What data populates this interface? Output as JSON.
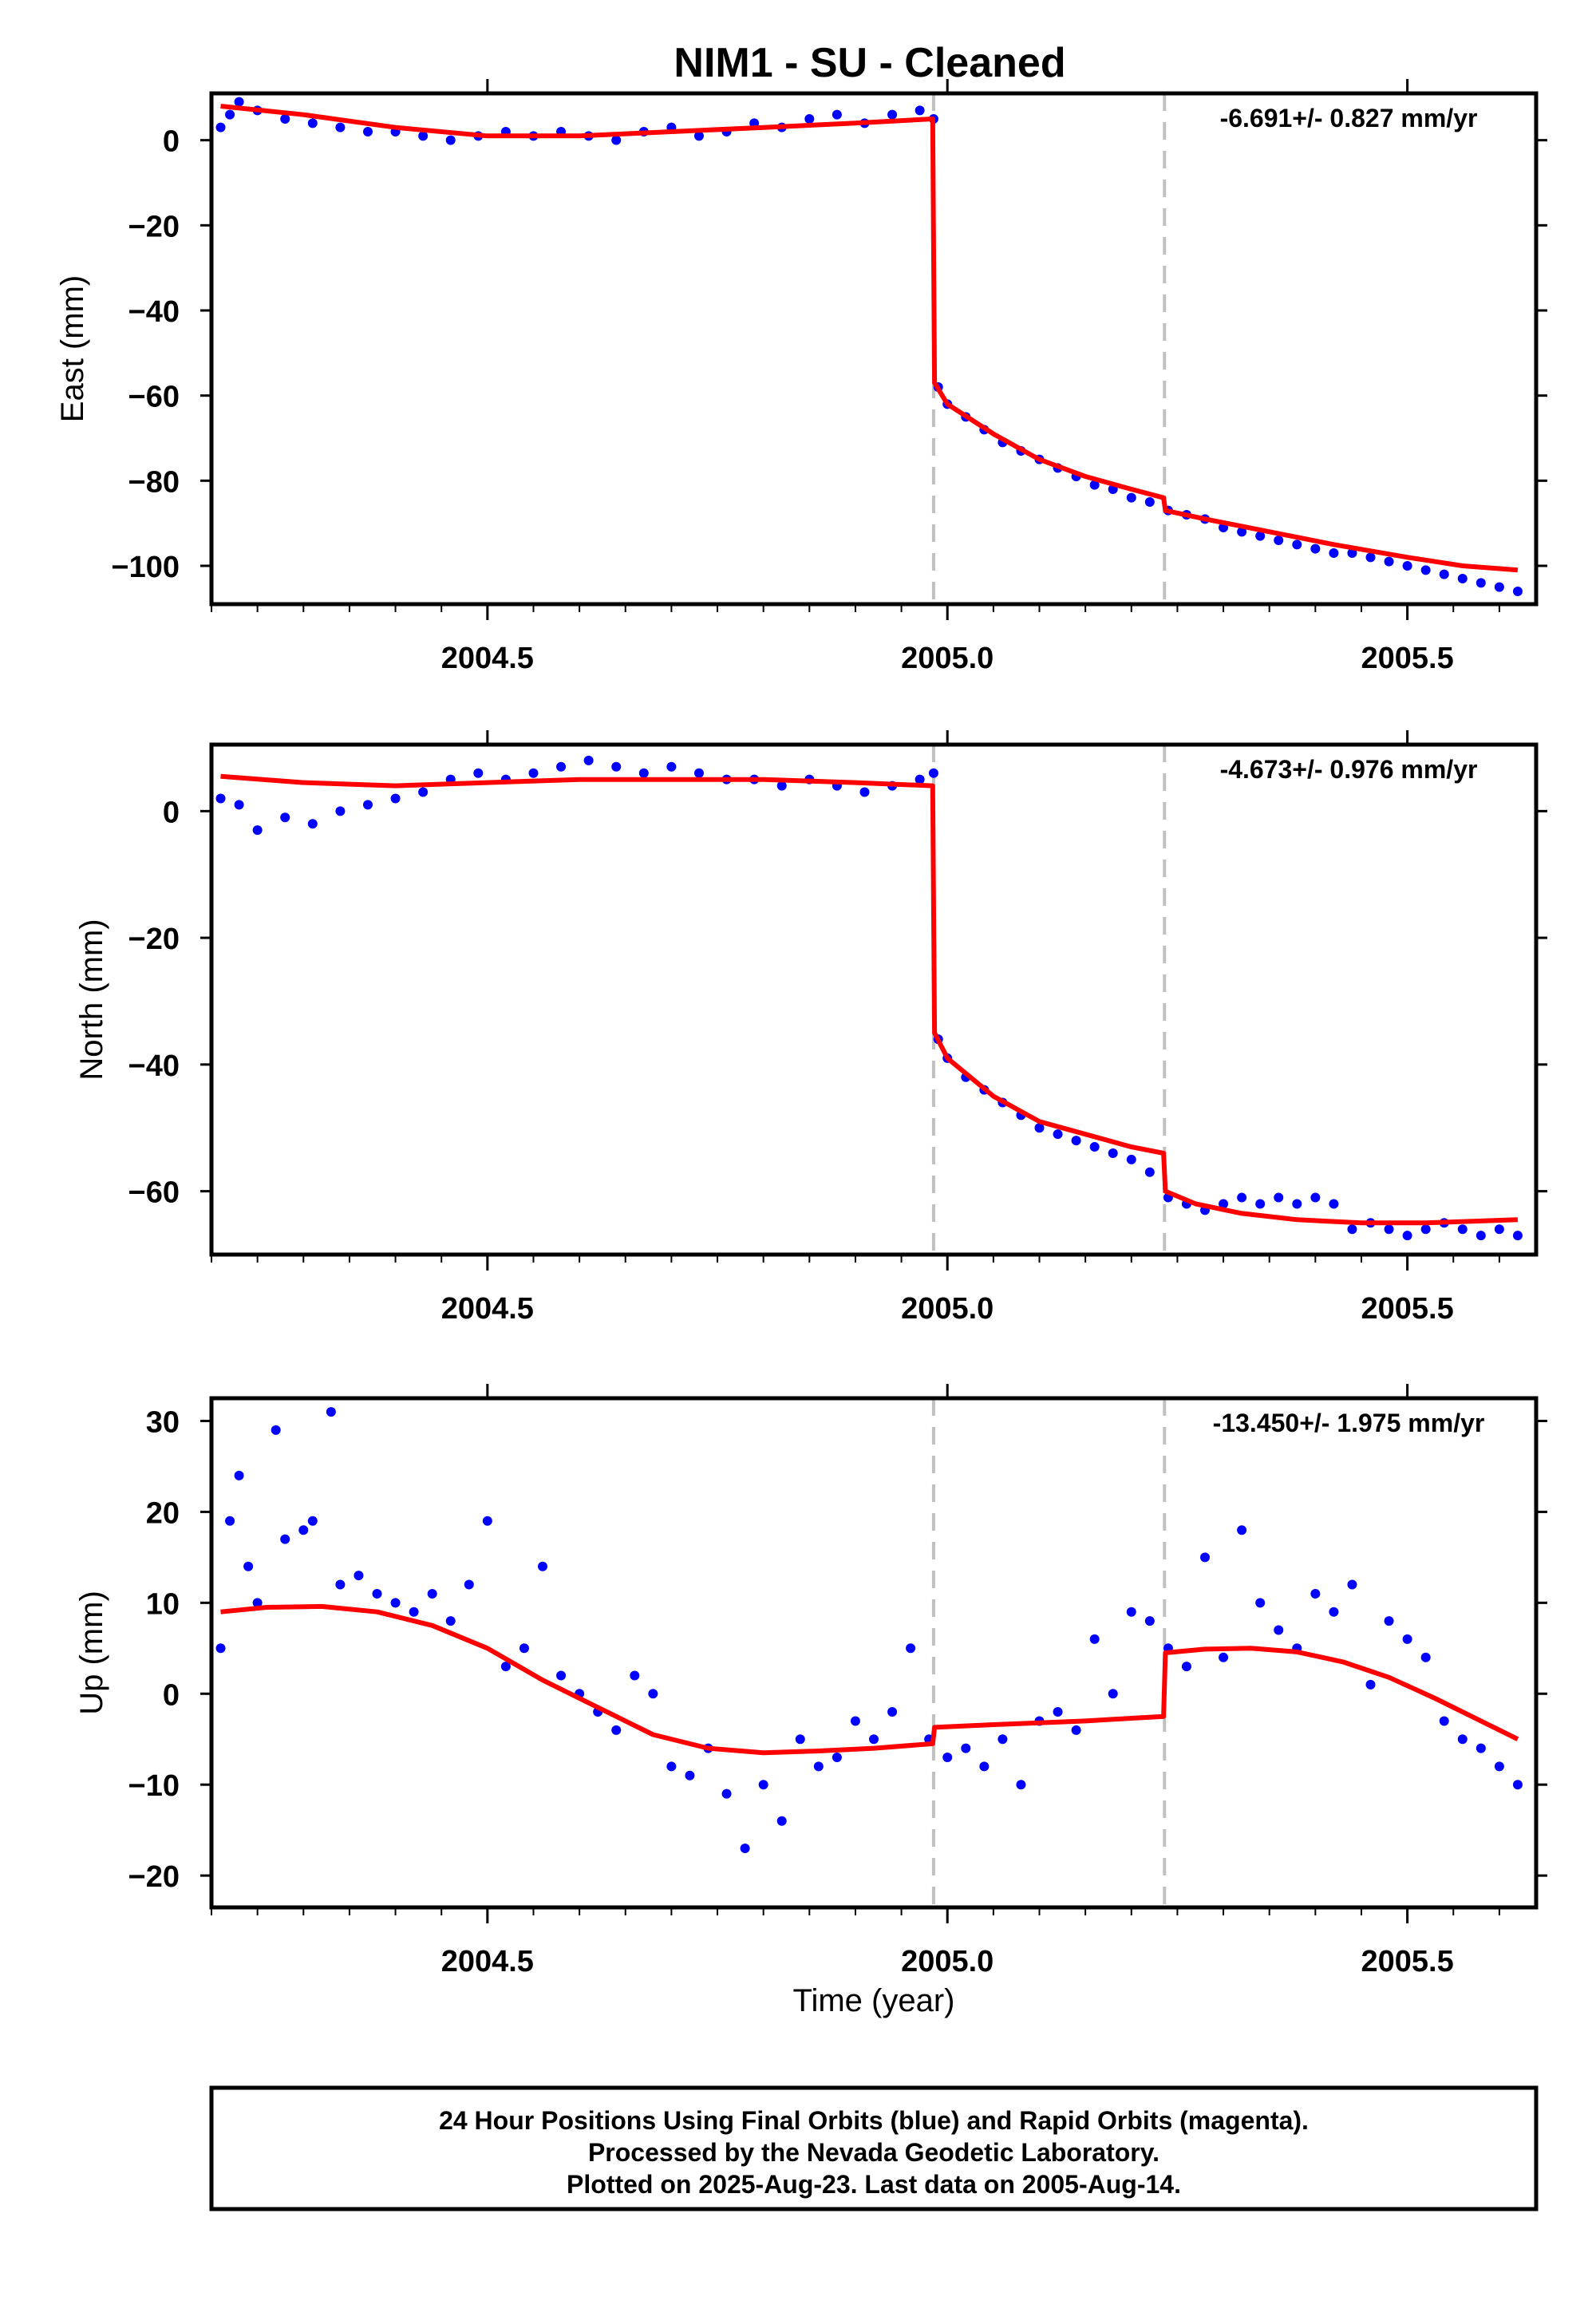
{
  "page": {
    "title": "NIM1  - SU - Cleaned"
  },
  "footer": {
    "lines": [
      "24 Hour Positions Using Final Orbits (blue) and Rapid Orbits (magenta).",
      "Processed by the Nevada Geodetic Laboratory.",
      "Plotted on 2025-Aug-23. Last data on 2005-Aug-14."
    ]
  },
  "colors": {
    "points": "#0000ff",
    "fit": "#ff0000",
    "event_line": "#c0c0c0",
    "frame": "#000000"
  },
  "chart_data": [
    {
      "type": "scatter",
      "ylabel": "East (mm)",
      "xlabel": "",
      "rate_label": "-6.691+/- 0.827 mm/yr",
      "xlim": [
        2004.2,
        2005.64
      ],
      "ylim": [
        -109,
        11
      ],
      "x_ticks": [
        2004.5,
        2005.0,
        2005.5
      ],
      "x_tick_labels": [
        "2004.5",
        "2005.0",
        "2005.5"
      ],
      "y_ticks": [
        0,
        -20,
        -40,
        -60,
        -80,
        -100
      ],
      "y_tick_labels": [
        "0",
        "−20",
        "−40",
        "−60",
        "−80",
        "−100"
      ],
      "event_lines": [
        2004.985,
        2005.236
      ],
      "grid": false,
      "legend": "none",
      "series": [
        {
          "kind": "points",
          "x": [
            2004.21,
            2004.22,
            2004.23,
            2004.25,
            2004.28,
            2004.31,
            2004.34,
            2004.37,
            2004.4,
            2004.43,
            2004.46,
            2004.49,
            2004.52,
            2004.55,
            2004.58,
            2004.61,
            2004.64,
            2004.67,
            2004.7,
            2004.73,
            2004.76,
            2004.79,
            2004.82,
            2004.85,
            2004.88,
            2004.91,
            2004.94,
            2004.97,
            2004.985,
            2004.99,
            2005.0,
            2005.02,
            2005.04,
            2005.06,
            2005.08,
            2005.1,
            2005.12,
            2005.14,
            2005.16,
            2005.18,
            2005.2,
            2005.22,
            2005.24,
            2005.26,
            2005.28,
            2005.3,
            2005.32,
            2005.34,
            2005.36,
            2005.38,
            2005.4,
            2005.42,
            2005.44,
            2005.46,
            2005.48,
            2005.5,
            2005.52,
            2005.54,
            2005.56,
            2005.58,
            2005.6,
            2005.62
          ],
          "y": [
            3,
            6,
            9,
            7,
            5,
            4,
            3,
            2,
            2,
            1,
            0,
            1,
            2,
            1,
            2,
            1,
            0,
            2,
            3,
            1,
            2,
            4,
            3,
            5,
            6,
            4,
            6,
            7,
            5,
            -58,
            -62,
            -65,
            -68,
            -71,
            -73,
            -75,
            -77,
            -79,
            -81,
            -82,
            -84,
            -85,
            -87,
            -88,
            -89,
            -91,
            -92,
            -93,
            -94,
            -95,
            -96,
            -97,
            -97,
            -98,
            -99,
            -100,
            -101,
            -102,
            -103,
            -104,
            -105,
            -106
          ]
        },
        {
          "kind": "fit",
          "x": [
            2004.21,
            2004.3,
            2004.4,
            2004.5,
            2004.6,
            2004.7,
            2004.8,
            2004.9,
            2004.984,
            2004.986,
            2005.0,
            2005.05,
            2005.1,
            2005.15,
            2005.2,
            2005.235,
            2005.237,
            2005.28,
            2005.35,
            2005.42,
            2005.5,
            2005.56,
            2005.62
          ],
          "y": [
            8,
            6,
            3,
            1,
            1,
            2,
            3,
            4,
            5,
            -57,
            -62,
            -69,
            -75,
            -79,
            -82,
            -84,
            -87,
            -89,
            -92,
            -95,
            -98,
            -100,
            -101
          ]
        }
      ]
    },
    {
      "type": "scatter",
      "ylabel": "North (mm)",
      "xlabel": "",
      "rate_label": "-4.673+/- 0.976 mm/yr",
      "xlim": [
        2004.2,
        2005.64
      ],
      "ylim": [
        -70,
        10.5
      ],
      "x_ticks": [
        2004.5,
        2005.0,
        2005.5
      ],
      "x_tick_labels": [
        "2004.5",
        "2005.0",
        "2005.5"
      ],
      "y_ticks": [
        0,
        -20,
        -40,
        -60
      ],
      "y_tick_labels": [
        "0",
        "−20",
        "−40",
        "−60"
      ],
      "event_lines": [
        2004.985,
        2005.236
      ],
      "grid": false,
      "legend": "none",
      "series": [
        {
          "kind": "points",
          "x": [
            2004.21,
            2004.23,
            2004.25,
            2004.28,
            2004.31,
            2004.34,
            2004.37,
            2004.4,
            2004.43,
            2004.46,
            2004.49,
            2004.52,
            2004.55,
            2004.58,
            2004.61,
            2004.64,
            2004.67,
            2004.7,
            2004.73,
            2004.76,
            2004.79,
            2004.82,
            2004.85,
            2004.88,
            2004.91,
            2004.94,
            2004.97,
            2004.985,
            2004.99,
            2005.0,
            2005.02,
            2005.04,
            2005.06,
            2005.08,
            2005.1,
            2005.12,
            2005.14,
            2005.16,
            2005.18,
            2005.2,
            2005.22,
            2005.24,
            2005.26,
            2005.28,
            2005.3,
            2005.32,
            2005.34,
            2005.36,
            2005.38,
            2005.4,
            2005.42,
            2005.44,
            2005.46,
            2005.48,
            2005.5,
            2005.52,
            2005.54,
            2005.56,
            2005.58,
            2005.6,
            2005.62
          ],
          "y": [
            2,
            1,
            -3,
            -1,
            -2,
            0,
            1,
            2,
            3,
            5,
            6,
            5,
            6,
            7,
            8,
            7,
            6,
            7,
            6,
            5,
            5,
            4,
            5,
            4,
            3,
            4,
            5,
            6,
            -36,
            -39,
            -42,
            -44,
            -46,
            -48,
            -50,
            -51,
            -52,
            -53,
            -54,
            -55,
            -57,
            -61,
            -62,
            -63,
            -62,
            -61,
            -62,
            -61,
            -62,
            -61,
            -62,
            -66,
            -65,
            -66,
            -67,
            -66,
            -65,
            -66,
            -67,
            -66,
            -67
          ]
        },
        {
          "kind": "fit",
          "x": [
            2004.21,
            2004.3,
            2004.4,
            2004.5,
            2004.6,
            2004.7,
            2004.8,
            2004.9,
            2004.984,
            2004.986,
            2005.0,
            2005.05,
            2005.1,
            2005.15,
            2005.2,
            2005.235,
            2005.237,
            2005.27,
            2005.32,
            2005.38,
            2005.45,
            2005.52,
            2005.58,
            2005.62
          ],
          "y": [
            5.5,
            4.5,
            4,
            4.5,
            5,
            5,
            5,
            4.5,
            4,
            -35,
            -39,
            -45,
            -49,
            -51,
            -53,
            -54,
            -60,
            -62,
            -63.5,
            -64.5,
            -65,
            -65,
            -64.7,
            -64.5
          ]
        }
      ]
    },
    {
      "type": "scatter",
      "ylabel": "Up (mm)",
      "xlabel": "Time (year)",
      "rate_label": "-13.450+/- 1.975 mm/yr",
      "xlim": [
        2004.2,
        2005.64
      ],
      "ylim": [
        -23.5,
        32.5
      ],
      "x_ticks": [
        2004.5,
        2005.0,
        2005.5
      ],
      "x_tick_labels": [
        "2004.5",
        "2005.0",
        "2005.5"
      ],
      "y_ticks": [
        30,
        20,
        10,
        0,
        -10,
        -20
      ],
      "y_tick_labels": [
        "30",
        "20",
        "10",
        "0",
        "−10",
        "−20"
      ],
      "event_lines": [
        2004.985,
        2005.236
      ],
      "grid": false,
      "legend": "none",
      "series": [
        {
          "kind": "points",
          "x": [
            2004.21,
            2004.22,
            2004.23,
            2004.24,
            2004.25,
            2004.27,
            2004.28,
            2004.3,
            2004.31,
            2004.33,
            2004.34,
            2004.36,
            2004.38,
            2004.4,
            2004.42,
            2004.44,
            2004.46,
            2004.48,
            2004.5,
            2004.52,
            2004.54,
            2004.56,
            2004.58,
            2004.6,
            2004.62,
            2004.64,
            2004.66,
            2004.68,
            2004.7,
            2004.72,
            2004.74,
            2004.76,
            2004.78,
            2004.8,
            2004.82,
            2004.84,
            2004.86,
            2004.88,
            2004.9,
            2004.92,
            2004.94,
            2004.96,
            2004.98,
            2005.0,
            2005.02,
            2005.04,
            2005.06,
            2005.08,
            2005.1,
            2005.12,
            2005.14,
            2005.16,
            2005.18,
            2005.2,
            2005.22,
            2005.24,
            2005.26,
            2005.28,
            2005.3,
            2005.32,
            2005.34,
            2005.36,
            2005.38,
            2005.4,
            2005.42,
            2005.44,
            2005.46,
            2005.48,
            2005.5,
            2005.52,
            2005.54,
            2005.56,
            2005.58,
            2005.6,
            2005.62
          ],
          "y": [
            5,
            19,
            24,
            14,
            10,
            29,
            17,
            18,
            19,
            31,
            12,
            13,
            11,
            10,
            9,
            11,
            8,
            12,
            19,
            3,
            5,
            14,
            2,
            0,
            -2,
            -4,
            2,
            0,
            -8,
            -9,
            -6,
            -11,
            -17,
            -10,
            -14,
            -5,
            -8,
            -7,
            -3,
            -5,
            -2,
            5,
            -5,
            -7,
            -6,
            -8,
            -5,
            -10,
            -3,
            -2,
            -4,
            6,
            0,
            9,
            8,
            5,
            3,
            15,
            4,
            18,
            10,
            7,
            5,
            11,
            9,
            12,
            1,
            8,
            6,
            4,
            -3,
            -5,
            -6,
            -8,
            -10
          ]
        },
        {
          "kind": "fit",
          "x": [
            2004.21,
            2004.26,
            2004.32,
            2004.38,
            2004.44,
            2004.5,
            2004.56,
            2004.62,
            2004.68,
            2004.74,
            2004.8,
            2004.86,
            2004.92,
            2004.984,
            2004.986,
            2005.05,
            2005.1,
            2005.15,
            2005.2,
            2005.235,
            2005.237,
            2005.28,
            2005.33,
            2005.38,
            2005.43,
            2005.48,
            2005.53,
            2005.58,
            2005.62
          ],
          "y": [
            9,
            9.5,
            9.6,
            9,
            7.5,
            5,
            1.5,
            -1.5,
            -4.5,
            -6,
            -6.5,
            -6.3,
            -6,
            -5.5,
            -3.7,
            -3.4,
            -3.2,
            -3,
            -2.7,
            -2.5,
            4.5,
            4.9,
            5,
            4.6,
            3.5,
            1.8,
            -0.5,
            -3,
            -5
          ]
        }
      ]
    }
  ]
}
